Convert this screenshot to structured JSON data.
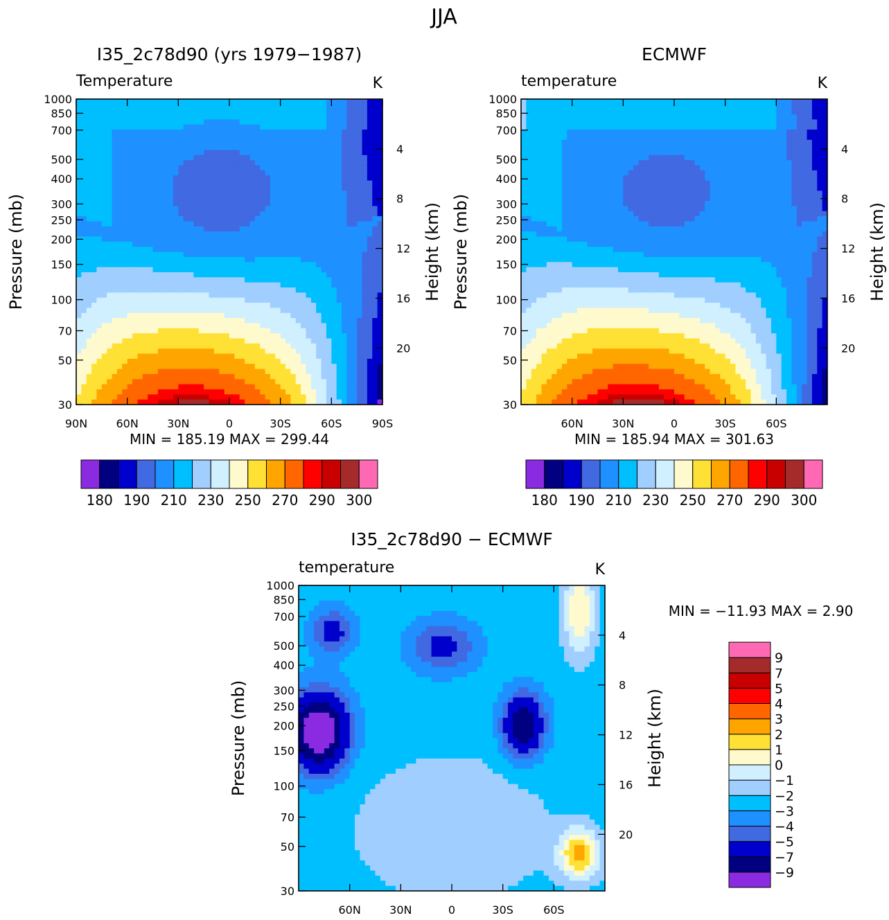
{
  "page": {
    "title": "JJA"
  },
  "chart_data": [
    {
      "type": "heatmap",
      "title": "I35_2c78d90 (yrs 1979−1987)",
      "left_label": "Temperature",
      "units": "K",
      "ylabel": "Pressure (mb)",
      "y2label": "Height (km)",
      "xlim": [
        90,
        -90
      ],
      "ylim": [
        1000,
        30
      ],
      "y_scale": "log",
      "x_ticks": [
        {
          "value": 90,
          "label": "90N"
        },
        {
          "value": 60,
          "label": "60N"
        },
        {
          "value": 30,
          "label": "30N"
        },
        {
          "value": 0,
          "label": "0"
        },
        {
          "value": -30,
          "label": "30S"
        },
        {
          "value": -60,
          "label": "60S"
        },
        {
          "value": -90,
          "label": "90S"
        }
      ],
      "y_ticks": [
        "30",
        "50",
        "70",
        "100",
        "150",
        "200",
        "250",
        "300",
        "400",
        "500",
        "700",
        "850",
        "1000"
      ],
      "y2_ticks": [
        "20",
        "16",
        "12",
        "8",
        "4"
      ],
      "stats": "MIN =  185.19   MAX =  299.44",
      "colorbar": {
        "orientation": "horizontal",
        "colors": [
          "#8a2be2",
          "#000080",
          "#0000cd",
          "#4169e1",
          "#1e90ff",
          "#00bfff",
          "#a0cfff",
          "#d0efff",
          "#fffacd",
          "#ffe135",
          "#ffa500",
          "#ff6600",
          "#ff0000",
          "#c80000",
          "#a52a2a",
          "#ff69b4"
        ],
        "labels": [
          "180",
          "190",
          "210",
          "230",
          "250",
          "270",
          "290",
          "300"
        ]
      }
    },
    {
      "type": "heatmap",
      "title": "ECMWF",
      "left_label": "temperature",
      "units": "K",
      "ylabel": "Pressure (mb)",
      "y2label": "Height (km)",
      "xlim": [
        90,
        -90
      ],
      "ylim": [
        1000,
        30
      ],
      "y_scale": "log",
      "x_ticks": [
        {
          "value": 60,
          "label": "60N"
        },
        {
          "value": 30,
          "label": "30N"
        },
        {
          "value": 0,
          "label": "0"
        },
        {
          "value": -30,
          "label": "30S"
        },
        {
          "value": -60,
          "label": "60S"
        }
      ],
      "y_ticks": [
        "30",
        "50",
        "70",
        "100",
        "150",
        "200",
        "250",
        "300",
        "400",
        "500",
        "700",
        "850",
        "1000"
      ],
      "y2_ticks": [
        "20",
        "16",
        "12",
        "8",
        "4"
      ],
      "stats": "MIN =  185.94   MAX =  301.63",
      "colorbar": {
        "orientation": "horizontal",
        "colors": [
          "#8a2be2",
          "#000080",
          "#0000cd",
          "#4169e1",
          "#1e90ff",
          "#00bfff",
          "#a0cfff",
          "#d0efff",
          "#fffacd",
          "#ffe135",
          "#ffa500",
          "#ff6600",
          "#ff0000",
          "#c80000",
          "#a52a2a",
          "#ff69b4"
        ],
        "labels": [
          "180",
          "190",
          "210",
          "230",
          "250",
          "270",
          "290",
          "300"
        ]
      }
    },
    {
      "type": "heatmap",
      "title": "I35_2c78d90 − ECMWF",
      "left_label": "temperature",
      "units": "K",
      "ylabel": "Pressure (mb)",
      "y2label": "Height (km)",
      "xlim": [
        90,
        -90
      ],
      "ylim": [
        1000,
        30
      ],
      "y_scale": "log",
      "x_ticks": [
        {
          "value": 60,
          "label": "60N"
        },
        {
          "value": 30,
          "label": "30N"
        },
        {
          "value": 0,
          "label": "0"
        },
        {
          "value": -30,
          "label": "30S"
        },
        {
          "value": -60,
          "label": "60S"
        }
      ],
      "y_ticks": [
        "30",
        "50",
        "70",
        "100",
        "150",
        "200",
        "250",
        "300",
        "400",
        "500",
        "700",
        "850",
        "1000"
      ],
      "y2_ticks": [
        "20",
        "16",
        "12",
        "8",
        "4"
      ],
      "stats": "MIN = −11.93   MAX =     2.90",
      "colorbar": {
        "orientation": "vertical",
        "colors": [
          "#8a2be2",
          "#000080",
          "#0000cd",
          "#4169e1",
          "#1e90ff",
          "#00bfff",
          "#a0cfff",
          "#d0efff",
          "#fffacd",
          "#ffe135",
          "#ffa500",
          "#ff6600",
          "#ff0000",
          "#c80000",
          "#a52a2a",
          "#ff69b4"
        ],
        "labels": [
          "−9",
          "−7",
          "−5",
          "−4",
          "−3",
          "−2",
          "−1",
          "0",
          "1",
          "2",
          "3",
          "4",
          "5",
          "7",
          "9"
        ]
      }
    }
  ]
}
